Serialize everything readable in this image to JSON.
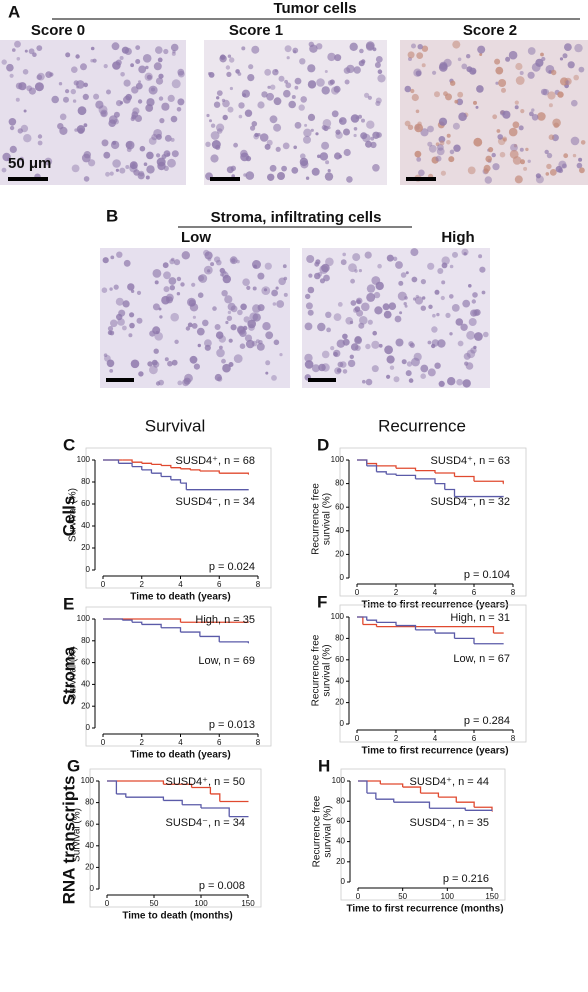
{
  "figure": {
    "panel_a": {
      "label": "A",
      "title": "Tumor cells",
      "scores": [
        "Score 0",
        "Score 1",
        "Score 2"
      ],
      "scale_bar": "50 μm"
    },
    "panel_b": {
      "label": "B",
      "title": "Stroma, infiltrating cells",
      "levels": [
        "Low",
        "High"
      ]
    },
    "column_titles": [
      "Survival",
      "Recurrence"
    ],
    "row_labels": [
      "Cells",
      "Stroma",
      "RNA transcripts"
    ]
  },
  "chart_data": [
    {
      "type": "step",
      "panel": "C",
      "ylabel": [
        "Survival (%)"
      ],
      "xlabel": "Time to death (years)",
      "xlim": [
        0,
        8
      ],
      "ylim": [
        0,
        100
      ],
      "xticks": [
        0,
        2,
        4,
        6,
        8
      ],
      "yticks": [
        0,
        20,
        40,
        60,
        80,
        100
      ],
      "p_value": "p = 0.024",
      "series": [
        {
          "name": "SUSD4⁺, n = 68",
          "color": "#e0492f",
          "x": [
            0,
            1,
            1.5,
            2,
            2.5,
            3,
            3.5,
            4,
            4.5,
            5,
            6,
            7.5
          ],
          "values": [
            100,
            100,
            98,
            97,
            96,
            95,
            93,
            92,
            91,
            90,
            88,
            87
          ]
        },
        {
          "name": "SUSD4⁻, n = 34",
          "color": "#5a5aa8",
          "x": [
            0,
            0.8,
            1.5,
            2,
            2.5,
            3,
            3.5,
            4,
            4.3,
            7.5
          ],
          "values": [
            100,
            97,
            94,
            91,
            88,
            85,
            82,
            79,
            73,
            73
          ]
        }
      ]
    },
    {
      "type": "step",
      "panel": "D",
      "ylabel": [
        "Recurrence free",
        "survival (%)"
      ],
      "xlabel": "Time to first recurrence (years)",
      "xlim": [
        0,
        8
      ],
      "ylim": [
        0,
        100
      ],
      "xticks": [
        0,
        2,
        4,
        6,
        8
      ],
      "yticks": [
        0,
        20,
        40,
        60,
        80,
        100
      ],
      "p_value": "p = 0.104",
      "series": [
        {
          "name": "SUSD4⁺, n = 63",
          "color": "#e0492f",
          "x": [
            0,
            0.5,
            1,
            2,
            3,
            4,
            5,
            6,
            7.5
          ],
          "values": [
            100,
            97,
            95,
            93,
            91,
            89,
            86,
            82,
            80
          ]
        },
        {
          "name": "SUSD4⁻, n = 32",
          "color": "#5a5aa8",
          "x": [
            0,
            0.5,
            1,
            1.5,
            2,
            3,
            4,
            4.5,
            5,
            7.5
          ],
          "values": [
            100,
            95,
            90,
            88,
            87,
            84,
            80,
            75,
            69,
            69
          ]
        }
      ]
    },
    {
      "type": "step",
      "panel": "E",
      "ylabel": [
        "Survival (%)"
      ],
      "xlabel": "Time to death (years)",
      "xlim": [
        0,
        8
      ],
      "ylim": [
        0,
        100
      ],
      "xticks": [
        0,
        2,
        4,
        6,
        8
      ],
      "yticks": [
        0,
        20,
        40,
        60,
        80,
        100
      ],
      "p_value": "p = 0.013",
      "series": [
        {
          "name": "High, n = 35",
          "color": "#e0492f",
          "x": [
            0,
            4,
            7.5
          ],
          "values": [
            100,
            97,
            97
          ]
        },
        {
          "name": "Low, n = 69",
          "color": "#5a5aa8",
          "x": [
            0,
            1,
            1.5,
            2,
            3,
            4,
            5,
            6,
            7.5
          ],
          "values": [
            100,
            99,
            97,
            95,
            92,
            88,
            84,
            79,
            78
          ]
        }
      ]
    },
    {
      "type": "step",
      "panel": "F",
      "ylabel": [
        "Recurrence free",
        "survival (%)"
      ],
      "xlabel": "Time to first recurrence (years)",
      "xlim": [
        0,
        8
      ],
      "ylim": [
        0,
        100
      ],
      "xticks": [
        0,
        2,
        4,
        6,
        8
      ],
      "yticks": [
        0,
        20,
        40,
        60,
        80,
        100
      ],
      "p_value": "p = 0.284",
      "series": [
        {
          "name": "High, n = 31",
          "color": "#e0492f",
          "x": [
            0,
            0.3,
            1,
            6,
            7,
            7.5
          ],
          "values": [
            100,
            93,
            91,
            91,
            85,
            85
          ]
        },
        {
          "name": "Low, n = 67",
          "color": "#5a5aa8",
          "x": [
            0,
            0.5,
            1,
            2,
            3,
            4,
            5,
            6,
            7.5
          ],
          "values": [
            100,
            97,
            95,
            92,
            88,
            85,
            80,
            75,
            75
          ]
        }
      ]
    },
    {
      "type": "step",
      "panel": "G",
      "ylabel": [
        "Survival (%)"
      ],
      "xlabel": "Time to death (months)",
      "xlim": [
        0,
        150
      ],
      "ylim": [
        0,
        100
      ],
      "xticks": [
        0,
        50,
        100,
        150
      ],
      "yticks": [
        0,
        20,
        40,
        60,
        80,
        100
      ],
      "p_value": "p = 0.008",
      "series": [
        {
          "name": "SUSD4⁺, n = 50",
          "color": "#e0492f",
          "x": [
            0,
            60,
            90,
            110,
            120,
            150
          ],
          "values": [
            100,
            97,
            94,
            88,
            81,
            81
          ]
        },
        {
          "name": "SUSD4⁻, n = 34",
          "color": "#5a5aa8",
          "x": [
            0,
            10,
            20,
            60,
            80,
            100,
            130,
            150
          ],
          "values": [
            100,
            88,
            85,
            82,
            78,
            75,
            67,
            67
          ]
        }
      ]
    },
    {
      "type": "step",
      "panel": "H",
      "ylabel": [
        "Recurrence free",
        "survival (%)"
      ],
      "xlabel": "Time to first recurrence (months)",
      "xlim": [
        0,
        150
      ],
      "ylim": [
        0,
        100
      ],
      "xticks": [
        0,
        50,
        100,
        150
      ],
      "yticks": [
        0,
        20,
        40,
        60,
        80,
        100
      ],
      "p_value": "p = 0.216",
      "series": [
        {
          "name": "SUSD4⁺, n = 44",
          "color": "#e0492f",
          "x": [
            0,
            25,
            50,
            70,
            90,
            110,
            130,
            150
          ],
          "values": [
            100,
            97,
            94,
            88,
            84,
            79,
            74,
            70
          ]
        },
        {
          "name": "SUSD4⁻, n = 35",
          "color": "#5a5aa8",
          "x": [
            0,
            10,
            20,
            40,
            80,
            120,
            150
          ],
          "values": [
            100,
            88,
            82,
            79,
            73,
            71,
            71
          ]
        }
      ]
    }
  ]
}
